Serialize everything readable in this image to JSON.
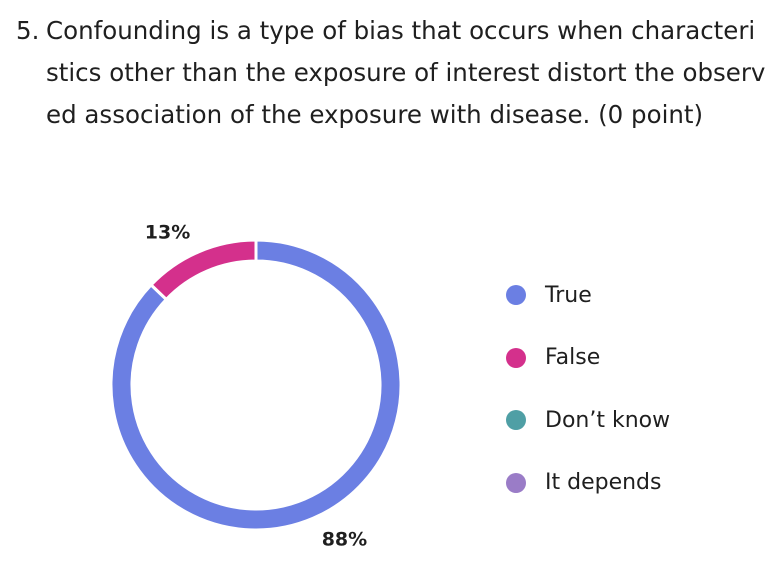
{
  "question": {
    "number": "5.",
    "text": "Confounding is a type of bias that occurs when characteristics other than the exposure of interest distort the observed association of the exposure with disease. (0 point)"
  },
  "chart_data": {
    "type": "pie",
    "style": "donut",
    "categories": [
      "True",
      "False",
      "Don’t know",
      "It depends"
    ],
    "values": [
      88,
      13,
      0,
      0
    ],
    "data_labels": [
      "88%",
      "13%",
      "",
      ""
    ],
    "colors": [
      "#6b7fe3",
      "#d4308c",
      "#4f9fa5",
      "#9a7cc7"
    ],
    "legend_position": "right"
  }
}
